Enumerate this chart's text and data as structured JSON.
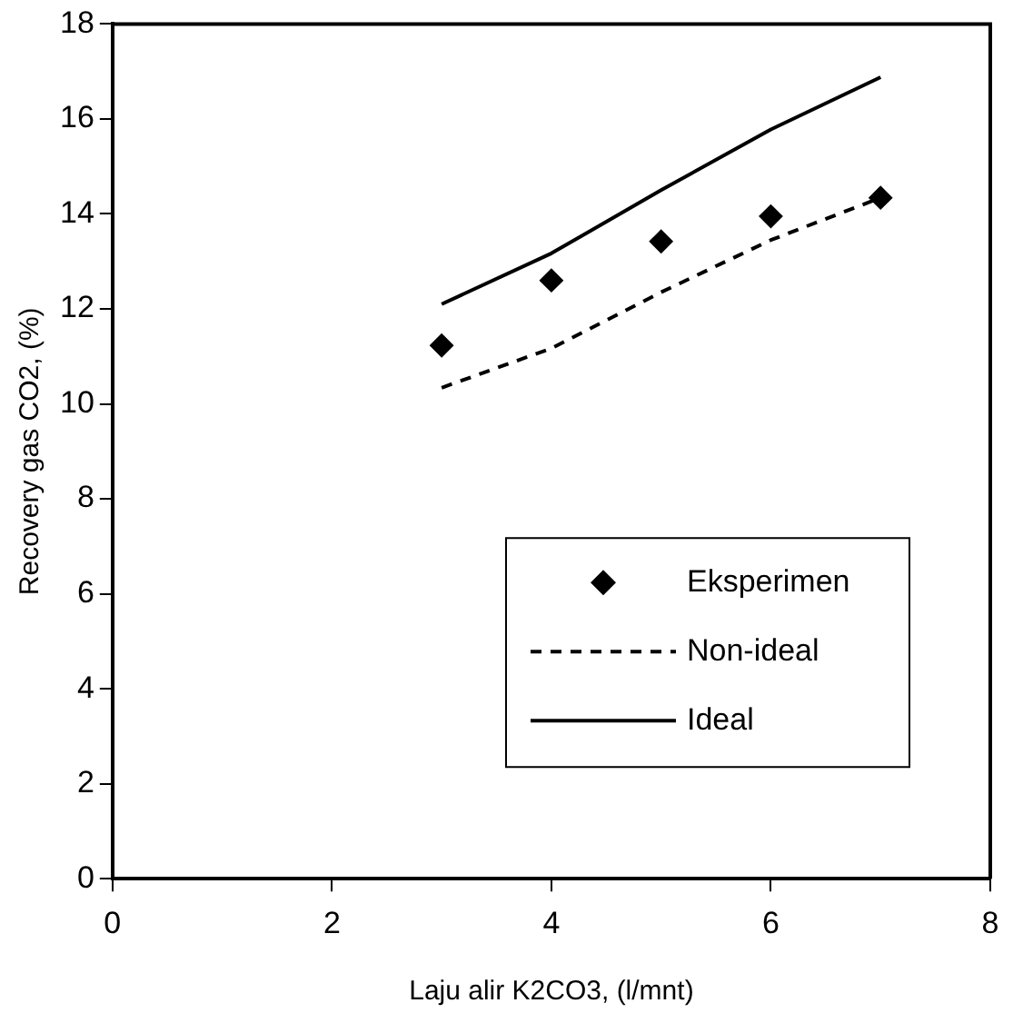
{
  "chart_data": {
    "type": "line",
    "xlabel": "Laju alir K2CO3, (l/mnt)",
    "ylabel": "Recovery gas CO2, (%)",
    "x": [
      3,
      4,
      5,
      6,
      7
    ],
    "series": [
      {
        "name": "Eksperimen",
        "type": "scatter",
        "color": "#000000",
        "marker": "diamond",
        "values": [
          11.23,
          12.6,
          13.42,
          13.95,
          14.34
        ]
      },
      {
        "name": "Non-ideal",
        "type": "line",
        "color": "#000000",
        "marker": "none",
        "line_style": "dashed",
        "values": [
          10.34,
          11.17,
          12.35,
          13.45,
          14.34
        ]
      },
      {
        "name": "Ideal",
        "type": "line",
        "color": "#000000",
        "marker": "none",
        "line_style": "solid",
        "values": [
          12.1,
          13.17,
          14.5,
          15.78,
          16.88
        ]
      }
    ],
    "xlim": [
      0,
      8
    ],
    "xticks": [
      0,
      2,
      4,
      6,
      8
    ],
    "ylim": [
      0,
      18
    ],
    "yticks": [
      0,
      2,
      4,
      6,
      8,
      10,
      12,
      14,
      16,
      18
    ],
    "grid": false,
    "legend": "bottom right"
  }
}
